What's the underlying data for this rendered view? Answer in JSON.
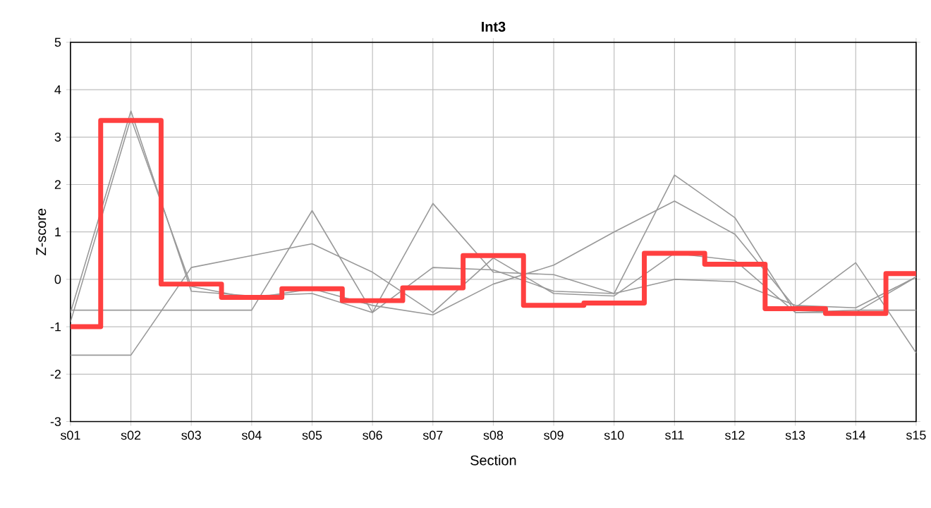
{
  "chart_data": {
    "type": "line",
    "title": "Int3",
    "xlabel": "Section",
    "ylabel": "Z-score",
    "categories": [
      "s01",
      "s02",
      "s03",
      "s04",
      "s05",
      "s06",
      "s07",
      "s08",
      "s09",
      "s10",
      "s11",
      "s12",
      "s13",
      "s14",
      "s15"
    ],
    "ylim": [
      -3,
      5
    ],
    "yticks": [
      -3,
      -2,
      -1,
      0,
      1,
      2,
      3,
      4,
      5
    ],
    "grid": true,
    "marker": "none",
    "series": [
      {
        "color": "#999999",
        "values": [
          -0.65,
          -0.65,
          -0.65,
          -0.65,
          1.45,
          -0.7,
          1.6,
          0.15,
          0.1,
          -0.3,
          2.2,
          1.3,
          -0.7,
          -0.65,
          -0.65
        ]
      },
      {
        "color": "#999999",
        "values": [
          -1.6,
          -1.6,
          0.25,
          0.5,
          0.75,
          0.15,
          -0.7,
          0.45,
          -0.3,
          -0.35,
          0.55,
          0.4,
          -0.7,
          -0.7,
          0.05
        ]
      },
      {
        "color": "#999999",
        "values": [
          -0.7,
          3.55,
          -0.25,
          -0.35,
          -0.3,
          -0.7,
          0.25,
          0.2,
          -0.25,
          -0.3,
          0.0,
          -0.05,
          -0.55,
          -0.6,
          0.05
        ]
      },
      {
        "color": "#999999",
        "values": [
          -0.9,
          3.4,
          -0.15,
          -0.4,
          -0.2,
          -0.55,
          -0.75,
          -0.1,
          0.3,
          1.0,
          1.65,
          0.95,
          -0.6,
          0.35,
          -1.55
        ]
      },
      {
        "type": "step",
        "color": "#ff4040",
        "values": [
          -1.0,
          3.35,
          -0.1,
          -0.38,
          -0.2,
          -0.45,
          -0.18,
          0.5,
          -0.55,
          -0.5,
          0.55,
          0.32,
          -0.62,
          -0.72,
          0.12
        ]
      }
    ]
  }
}
